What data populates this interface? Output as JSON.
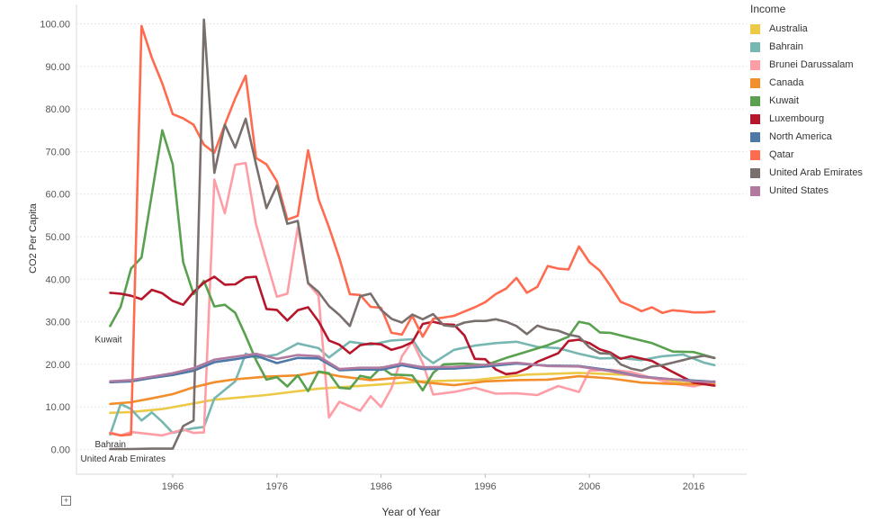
{
  "chart_data": {
    "type": "line",
    "title": "",
    "xlabel": "Year of Year",
    "ylabel": "CO2 Per Capita",
    "xlim": [
      1958.5,
      2020.5
    ],
    "ylim": [
      -4,
      104
    ],
    "x_ticks": [
      1966,
      1976,
      1986,
      1996,
      2006,
      2016
    ],
    "y_ticks": [
      0,
      10,
      20,
      30,
      40,
      50,
      60,
      70,
      80,
      90,
      100
    ],
    "y_tick_labels": [
      "0.00",
      "10.00",
      "20.00",
      "30.00",
      "40.00",
      "50.00",
      "60.00",
      "70.00",
      "80.00",
      "90.00",
      "100.00"
    ],
    "grid": "horizontal",
    "legend_title": "Income",
    "legend_position": "right",
    "line_labels": [
      {
        "series": "Kuwait",
        "text": "Kuwait"
      },
      {
        "series": "Bahrain",
        "text": "Bahrain"
      },
      {
        "series": "United Arab Emirates",
        "text": "United Arab Emirates"
      }
    ],
    "series": [
      {
        "name": "Australia",
        "color": "#edc948",
        "x": [
          1960,
          1962,
          1965,
          1970,
          1975,
          1980,
          1985,
          1990,
          1995,
          2000,
          2005,
          2010,
          2015,
          2018
        ],
        "y": [
          8.6,
          8.8,
          9.5,
          11.7,
          12.8,
          14.3,
          15.1,
          16.0,
          16.3,
          17.6,
          18.0,
          17.5,
          15.6,
          15.4
        ]
      },
      {
        "name": "Bahrain",
        "color": "#76b7b2",
        "x": [
          1960,
          1961,
          1962,
          1963,
          1964,
          1965,
          1966,
          1967,
          1968,
          1969,
          1970,
          1972,
          1973,
          1974,
          1976,
          1978,
          1980,
          1981,
          1983,
          1985,
          1987,
          1989,
          1990,
          1991,
          1993,
          1995,
          1997,
          1999,
          2001,
          2003,
          2005,
          2007,
          2009,
          2011,
          2013,
          2015,
          2017,
          2018
        ],
        "y": [
          3.5,
          10.7,
          9.5,
          6.8,
          8.7,
          6.5,
          3.9,
          4.5,
          5.0,
          5.3,
          12.0,
          16.0,
          22.5,
          21.5,
          22.3,
          24.9,
          23.8,
          21.6,
          25.3,
          24.6,
          25.6,
          25.9,
          22.1,
          20.3,
          23.4,
          24.4,
          25.0,
          25.3,
          24.1,
          23.8,
          22.5,
          21.4,
          21.5,
          21.0,
          21.9,
          22.3,
          20.4,
          19.8
        ]
      },
      {
        "name": "Brunei Darussalam",
        "color": "#ff9da7",
        "x": [
          1960,
          1961,
          1962,
          1965,
          1967,
          1968,
          1969,
          1970,
          1971,
          1972,
          1973,
          1974,
          1975,
          1976,
          1977,
          1978,
          1979,
          1980,
          1981,
          1982,
          1984,
          1985,
          1986,
          1987,
          1988,
          1989,
          1990,
          1991,
          1993,
          1995,
          1997,
          1999,
          2001,
          2003,
          2005,
          2006,
          2008,
          2010,
          2012,
          2014,
          2016,
          2018
        ],
        "y": [
          4.0,
          3.3,
          4.1,
          3.3,
          4.7,
          3.9,
          4.0,
          63.4,
          55.5,
          66.9,
          67.3,
          52.9,
          44.3,
          35.9,
          36.6,
          52.2,
          39.0,
          36.1,
          7.5,
          11.2,
          9.1,
          12.5,
          10.0,
          14.4,
          21.9,
          25.4,
          20.3,
          12.9,
          13.5,
          14.5,
          13.1,
          13.2,
          12.8,
          14.9,
          13.5,
          18.5,
          18.7,
          18.2,
          16.8,
          15.5,
          14.8,
          16.0
        ]
      },
      {
        "name": "Canada",
        "color": "#f28e2b",
        "x": [
          1960,
          1962,
          1964,
          1966,
          1968,
          1970,
          1972,
          1975,
          1978,
          1980,
          1982,
          1985,
          1988,
          1990,
          1993,
          1996,
          1999,
          2002,
          2005,
          2008,
          2011,
          2014,
          2016,
          2018
        ],
        "y": [
          10.7,
          11.1,
          12.0,
          13.0,
          14.6,
          15.8,
          16.5,
          17.1,
          17.4,
          18.2,
          17.2,
          16.3,
          16.9,
          15.8,
          15.1,
          16.0,
          16.3,
          16.4,
          17.2,
          16.7,
          15.7,
          15.4,
          15.3,
          15.3
        ]
      },
      {
        "name": "Kuwait",
        "color": "#59a14f",
        "x": [
          1960,
          1961,
          1962,
          1963,
          1964,
          1965,
          1966,
          1967,
          1968,
          1969,
          1970,
          1971,
          1972,
          1973,
          1974,
          1975,
          1976,
          1977,
          1978,
          1979,
          1980,
          1981,
          1982,
          1983,
          1984,
          1985,
          1986,
          1987,
          1988,
          1989,
          1990,
          1991,
          1992,
          1994,
          1996,
          1998,
          2000,
          2002,
          2004,
          2005,
          2006,
          2007,
          2008,
          2010,
          2012,
          2014,
          2016,
          2018
        ],
        "y": [
          29.0,
          33.5,
          42.5,
          45.1,
          60.0,
          75.0,
          67.0,
          44.0,
          36.5,
          39.6,
          33.6,
          34.0,
          32.1,
          26.7,
          21.0,
          16.4,
          17.0,
          14.8,
          17.4,
          13.7,
          18.3,
          17.9,
          14.5,
          14.3,
          17.3,
          16.8,
          19.3,
          17.6,
          17.5,
          17.4,
          13.9,
          18.0,
          20.0,
          20.2,
          19.8,
          21.5,
          23.0,
          24.5,
          26.5,
          30.0,
          29.5,
          27.5,
          27.4,
          26.2,
          25.0,
          23.0,
          22.9,
          21.5
        ]
      },
      {
        "name": "Luxembourg",
        "color": "#b6162b",
        "x": [
          1960,
          1961,
          1962,
          1963,
          1964,
          1965,
          1966,
          1967,
          1968,
          1969,
          1970,
          1971,
          1972,
          1973,
          1974,
          1975,
          1976,
          1977,
          1978,
          1979,
          1980,
          1981,
          1982,
          1983,
          1984,
          1985,
          1986,
          1987,
          1988,
          1989,
          1990,
          1991,
          1992,
          1993,
          1994,
          1995,
          1996,
          1997,
          1998,
          1999,
          2000,
          2001,
          2002,
          2003,
          2004,
          2005,
          2006,
          2007,
          2008,
          2009,
          2010,
          2012,
          2014,
          2016,
          2018
        ],
        "y": [
          36.8,
          36.6,
          36.1,
          35.3,
          37.5,
          36.7,
          34.9,
          34.0,
          37.0,
          39.2,
          40.6,
          38.7,
          38.8,
          40.4,
          40.6,
          33.0,
          32.8,
          30.3,
          32.7,
          33.4,
          30.1,
          25.6,
          24.6,
          22.6,
          24.5,
          24.9,
          24.7,
          23.4,
          24.1,
          25.2,
          29.5,
          30.0,
          29.4,
          29.3,
          26.8,
          21.3,
          21.2,
          18.8,
          17.7,
          18.0,
          19.0,
          20.6,
          21.6,
          22.6,
          25.5,
          25.8,
          25.0,
          23.5,
          22.8,
          21.3,
          21.9,
          20.8,
          18.2,
          15.7,
          15.0
        ]
      },
      {
        "name": "North America",
        "color": "#4e79a7",
        "x": [
          1960,
          1962,
          1964,
          1966,
          1968,
          1970,
          1972,
          1974,
          1976,
          1978,
          1980,
          1982,
          1984,
          1986,
          1988,
          1990,
          1993,
          1996,
          1999,
          2002,
          2005,
          2008,
          2011,
          2014,
          2016,
          2018
        ],
        "y": [
          15.8,
          16.0,
          16.8,
          17.5,
          18.5,
          20.5,
          21.2,
          22.0,
          20.3,
          21.5,
          21.4,
          18.6,
          18.8,
          18.7,
          19.8,
          18.9,
          19.0,
          19.5,
          20.2,
          19.7,
          19.6,
          18.6,
          17.1,
          16.5,
          16.2,
          15.9
        ]
      },
      {
        "name": "Qatar",
        "color": "#ff6b4f",
        "x": [
          1960,
          1961,
          1962,
          1963,
          1964,
          1965,
          1966,
          1967,
          1968,
          1969,
          1970,
          1971,
          1972,
          1973,
          1974,
          1975,
          1976,
          1977,
          1978,
          1979,
          1980,
          1981,
          1982,
          1983,
          1984,
          1985,
          1986,
          1987,
          1988,
          1989,
          1990,
          1991,
          1992,
          1993,
          1994,
          1995,
          1996,
          1997,
          1998,
          1999,
          2000,
          2001,
          2002,
          2003,
          2004,
          2005,
          2006,
          2007,
          2008,
          2009,
          2010,
          2011,
          2012,
          2013,
          2014,
          2015,
          2016,
          2017,
          2018
        ],
        "y": [
          3.8,
          3.3,
          3.5,
          99.5,
          92.0,
          86.0,
          78.8,
          77.8,
          76.3,
          71.6,
          69.7,
          76.3,
          82.5,
          87.8,
          68.5,
          67.0,
          63.0,
          54.0,
          54.9,
          70.3,
          58.8,
          52.2,
          44.9,
          36.5,
          36.3,
          33.5,
          33.3,
          27.4,
          27.0,
          31.4,
          26.5,
          30.7,
          31.0,
          31.4,
          32.4,
          33.4,
          34.6,
          36.5,
          37.8,
          40.3,
          36.8,
          38.2,
          43.1,
          42.5,
          42.3,
          47.7,
          44.0,
          42.0,
          38.5,
          34.7,
          33.7,
          32.5,
          33.4,
          32.1,
          32.7,
          32.5,
          32.2,
          32.2,
          32.4
        ]
      },
      {
        "name": "United Arab Emirates",
        "color": "#79706e",
        "x": [
          1960,
          1962,
          1964,
          1966,
          1967,
          1968,
          1969,
          1970,
          1971,
          1972,
          1973,
          1974,
          1975,
          1976,
          1977,
          1978,
          1979,
          1980,
          1981,
          1982,
          1983,
          1984,
          1985,
          1986,
          1987,
          1988,
          1989,
          1990,
          1991,
          1992,
          1993,
          1994,
          1995,
          1996,
          1997,
          1998,
          1999,
          2000,
          2001,
          2002,
          2003,
          2004,
          2005,
          2006,
          2007,
          2008,
          2009,
          2010,
          2011,
          2012,
          2013,
          2014,
          2015,
          2016,
          2017,
          2018
        ],
        "y": [
          0.1,
          0.1,
          0.2,
          0.2,
          5.5,
          6.8,
          101.0,
          65.0,
          76.3,
          70.9,
          77.7,
          67.0,
          56.7,
          62.0,
          53.0,
          53.7,
          39.1,
          37.0,
          33.7,
          31.6,
          29.0,
          36.0,
          36.6,
          32.8,
          30.7,
          29.8,
          31.7,
          30.6,
          31.8,
          29.2,
          28.9,
          29.8,
          30.2,
          30.2,
          30.6,
          30.0,
          29.0,
          27.1,
          29.1,
          28.3,
          27.9,
          27.0,
          26.5,
          24.0,
          22.6,
          22.5,
          20.0,
          19.0,
          18.5,
          19.5,
          19.8,
          20.4,
          21.0,
          21.6,
          22.0,
          21.5
        ]
      },
      {
        "name": "United States",
        "color": "#b07aa1",
        "x": [
          1960,
          1962,
          1964,
          1966,
          1968,
          1970,
          1972,
          1974,
          1976,
          1978,
          1980,
          1982,
          1984,
          1986,
          1988,
          1990,
          1993,
          1996,
          1999,
          2002,
          2005,
          2008,
          2011,
          2014,
          2016,
          2018
        ],
        "y": [
          16.0,
          16.3,
          17.1,
          17.9,
          19.1,
          21.1,
          21.8,
          22.5,
          21.3,
          22.2,
          21.9,
          18.9,
          19.2,
          19.2,
          20.2,
          19.3,
          19.4,
          19.9,
          20.4,
          19.6,
          19.5,
          18.4,
          17.0,
          16.5,
          16.0,
          15.8
        ]
      }
    ]
  }
}
